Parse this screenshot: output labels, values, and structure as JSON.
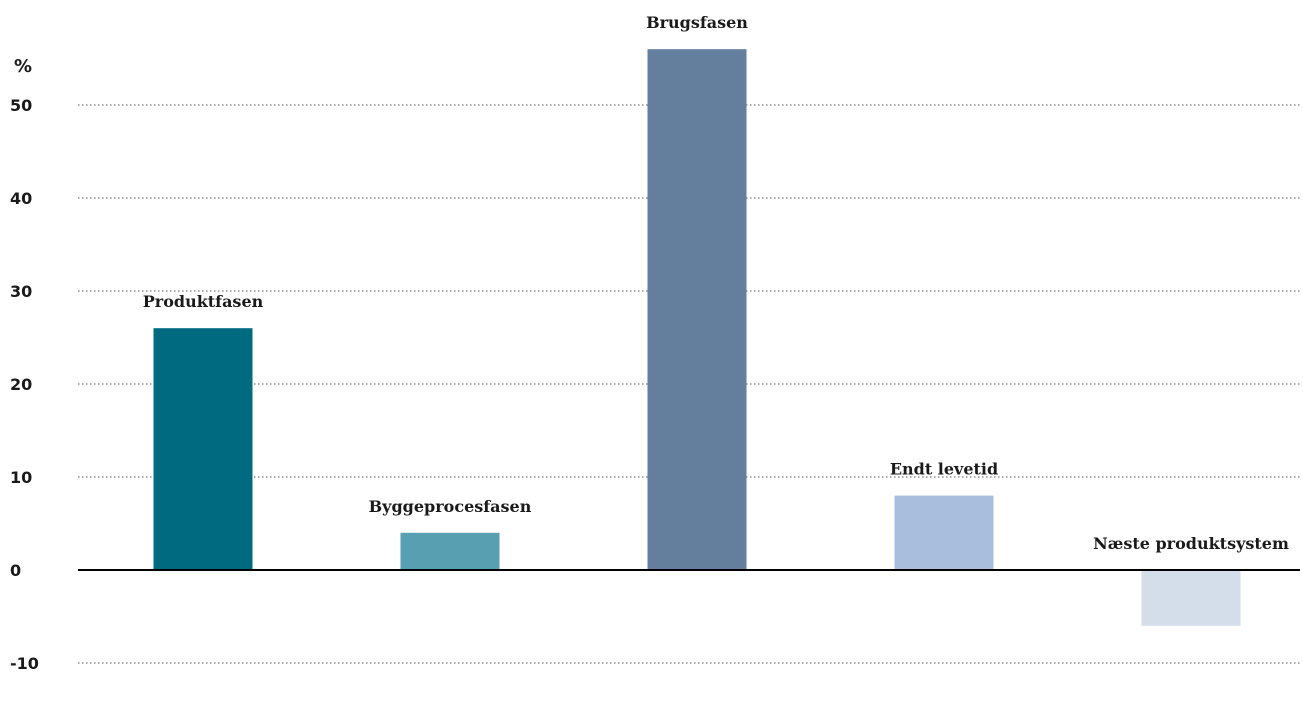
{
  "chart_data": {
    "type": "bar",
    "ylabel": "%",
    "ylim": [
      -10,
      55
    ],
    "yticks": [
      -10,
      0,
      10,
      20,
      30,
      40,
      50
    ],
    "grid": true,
    "categories": [
      "Produktfasen",
      "Byggeprocesfasen",
      "Brugsfasen",
      "Endt levetid",
      "Næste produktsystem"
    ],
    "values": [
      26,
      4,
      56,
      8,
      -6
    ],
    "colors": [
      "#006b80",
      "#579fb1",
      "#647e9e",
      "#a9bedd",
      "#d3deea"
    ]
  }
}
